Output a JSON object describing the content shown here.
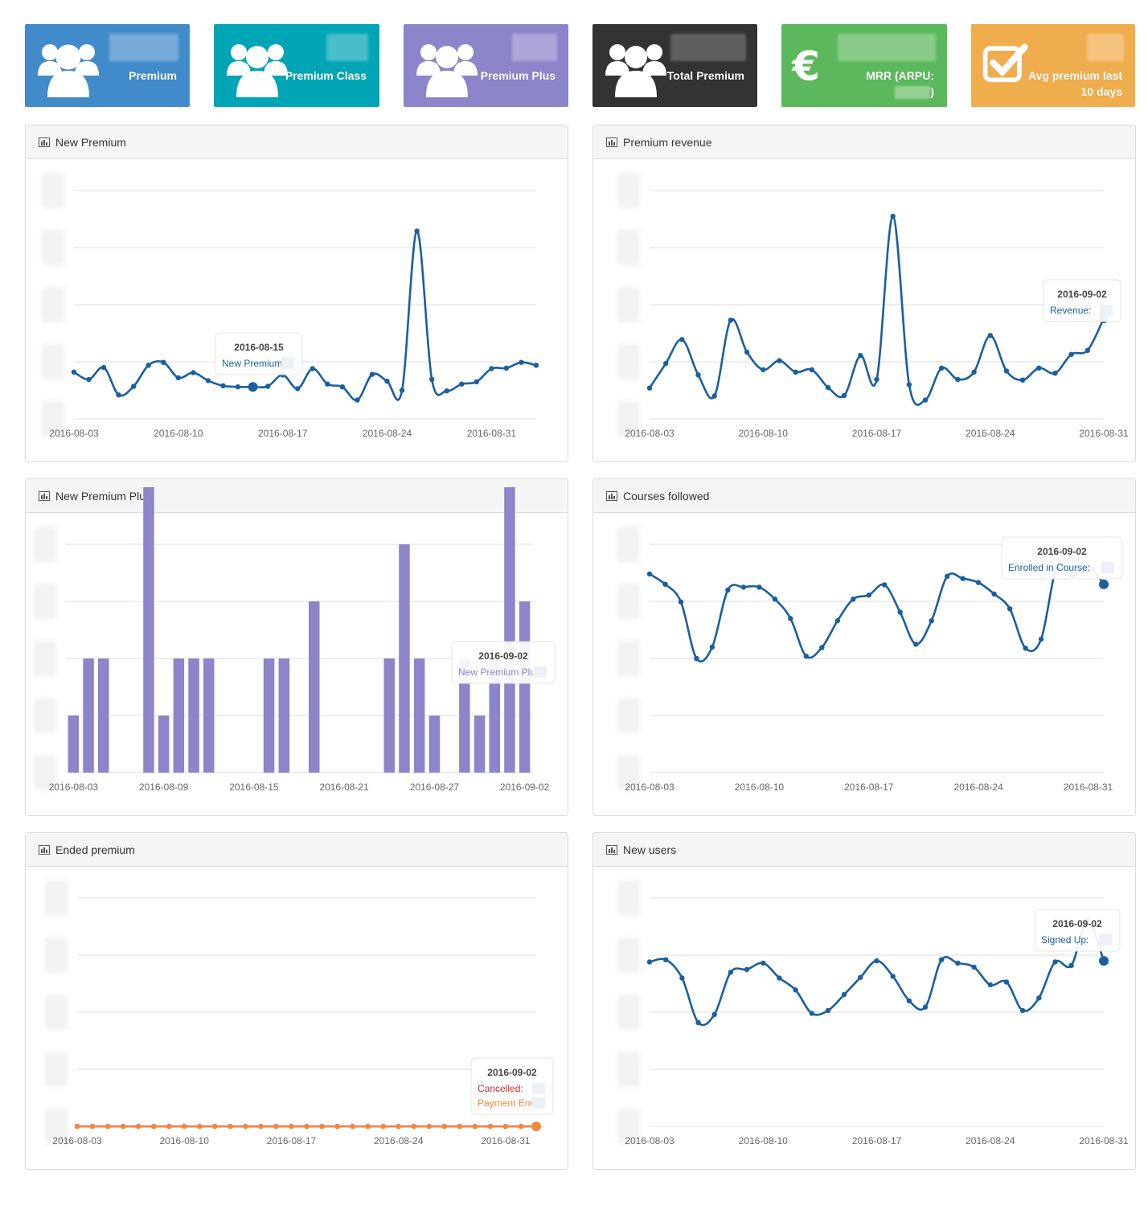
{
  "stats": [
    {
      "label": "Premium",
      "label2": "",
      "color": "#428bca",
      "icon": "users-icon"
    },
    {
      "label": "Premium Class",
      "label2": "",
      "color": "#00a5b5",
      "icon": "users-icon"
    },
    {
      "label": "Premium Plus",
      "label2": "",
      "color": "#8c85c9",
      "icon": "users-icon"
    },
    {
      "label": "Total Premium",
      "label2": "",
      "color": "#333333",
      "icon": "users-icon"
    },
    {
      "label": "MRR (ARPU:",
      "label2": ")",
      "color": "#5cb85c",
      "icon": "euro-icon"
    },
    {
      "label": "Avg premium last",
      "label2": "10 days",
      "color": "#f0ad4e",
      "icon": "check-square-icon"
    }
  ],
  "panels": {
    "p0": {
      "title": "New Premium"
    },
    "p1": {
      "title": "Premium revenue"
    },
    "p2": {
      "title": "New Premium Plus"
    },
    "p3": {
      "title": "Courses followed"
    },
    "p4": {
      "title": "Ended premium"
    },
    "p5": {
      "title": "New users"
    }
  },
  "chart_data": [
    {
      "id": "p0",
      "type": "line",
      "x_ticks": [
        "2016-08-03",
        "2016-08-10",
        "2016-08-17",
        "2016-08-24",
        "2016-08-31"
      ],
      "series": [
        {
          "name": "New Premium",
          "color": "#1a5f9e",
          "values": [
            0.82,
            0.69,
            0.9,
            0.42,
            0.57,
            0.94,
            0.99,
            0.72,
            0.81,
            0.67,
            0.58,
            0.56,
            0.56,
            0.57,
            0.77,
            0.53,
            0.88,
            0.61,
            0.56,
            0.33,
            0.78,
            0.66,
            0.5,
            3.29,
            0.69,
            0.49,
            0.61,
            0.65,
            0.88,
            0.89,
            0.99,
            0.94
          ]
        }
      ],
      "tooltip": {
        "date": "2016-08-15",
        "lines": [
          {
            "label": "New Premium:",
            "color": "#1a5f9e"
          }
        ],
        "highlight_index": 12
      }
    },
    {
      "id": "p1",
      "type": "line",
      "x_ticks": [
        "2016-08-03",
        "2016-08-10",
        "2016-08-17",
        "2016-08-24",
        "2016-08-31"
      ],
      "series": [
        {
          "name": "Revenue",
          "color": "#1a5f9e",
          "values": [
            0.54,
            0.97,
            1.39,
            0.77,
            0.4,
            1.73,
            1.17,
            0.86,
            1.02,
            0.82,
            0.86,
            0.55,
            0.41,
            1.11,
            0.69,
            3.55,
            0.6,
            0.33,
            0.89,
            0.69,
            0.82,
            1.46,
            0.84,
            0.68,
            0.89,
            0.8,
            1.13,
            1.2,
            1.76
          ]
        }
      ],
      "tooltip": {
        "date": "2016-09-02",
        "lines": [
          {
            "label": "Revenue:",
            "color": "#1a5f9e"
          }
        ],
        "highlight_index": 28
      }
    },
    {
      "id": "p2",
      "type": "bar",
      "x_ticks": [
        "2016-08-03",
        "2016-08-09",
        "2016-08-15",
        "2016-08-21",
        "2016-08-27",
        "2016-09-02"
      ],
      "series": [
        {
          "name": "New Premium Plus",
          "color": "#8c85c9",
          "values": [
            1,
            2,
            2,
            0,
            0,
            5,
            1,
            2,
            2,
            2,
            0,
            0,
            0,
            2,
            2,
            0,
            3,
            0,
            0,
            0,
            0,
            2,
            4,
            2,
            1,
            0,
            2,
            1,
            2,
            5,
            3
          ]
        }
      ],
      "tooltip": {
        "date": "2016-09-02",
        "lines": [
          {
            "label": "New Premium Plus:",
            "color": "#8c85c9"
          }
        ],
        "highlight_index": 30
      }
    },
    {
      "id": "p3",
      "type": "line",
      "x_ticks": [
        "2016-08-03",
        "2016-08-10",
        "2016-08-17",
        "2016-08-24",
        "2016-08-31"
      ],
      "series": [
        {
          "name": "Enrolled in Course",
          "color": "#1a5f9e",
          "values": [
            3.48,
            3.3,
            2.99,
            2.0,
            2.2,
            3.2,
            3.25,
            3.25,
            3.04,
            2.7,
            2.04,
            2.19,
            2.66,
            3.04,
            3.11,
            3.29,
            2.81,
            2.25,
            2.66,
            3.44,
            3.4,
            3.33,
            3.13,
            2.87,
            2.18,
            2.34,
            3.6,
            3.45,
            3.62,
            3.3
          ]
        }
      ],
      "tooltip": {
        "date": "2016-09-02",
        "lines": [
          {
            "label": "Enrolled in Course:",
            "color": "#1a5f9e"
          }
        ],
        "highlight_index": 29
      }
    },
    {
      "id": "p4",
      "type": "line",
      "x_ticks": [
        "2016-08-03",
        "2016-08-10",
        "2016-08-17",
        "2016-08-24",
        "2016-08-31"
      ],
      "series": [
        {
          "name": "Cancelled",
          "color": "#d9534f",
          "values": [
            0,
            0,
            0,
            0,
            0,
            0,
            0,
            0,
            0,
            0,
            0,
            0,
            0,
            0,
            0,
            0,
            0,
            0,
            0,
            0,
            0,
            0,
            0,
            0,
            0,
            0,
            0,
            0,
            0,
            0,
            0
          ]
        },
        {
          "name": "Payment Error",
          "color": "#f0883e",
          "values": [
            0,
            0,
            0,
            0,
            0,
            0,
            0,
            0,
            0,
            0,
            0,
            0,
            0,
            0,
            0,
            0,
            0,
            0,
            0,
            0,
            0,
            0,
            0,
            0,
            0,
            0,
            0,
            0,
            0,
            0,
            0
          ]
        }
      ],
      "tooltip": {
        "date": "2016-09-02",
        "lines": [
          {
            "label": "Cancelled:",
            "color": "#c9302c"
          },
          {
            "label": "Payment Error:",
            "color": "#f0883e"
          }
        ],
        "highlight_index": 30
      }
    },
    {
      "id": "p5",
      "type": "line",
      "x_ticks": [
        "2016-08-03",
        "2016-08-10",
        "2016-08-17",
        "2016-08-24",
        "2016-08-31"
      ],
      "series": [
        {
          "name": "Signed Up",
          "color": "#1a5f9e",
          "values": [
            2.88,
            2.92,
            2.6,
            1.82,
            1.96,
            2.7,
            2.75,
            2.86,
            2.6,
            2.39,
            1.98,
            2.03,
            2.31,
            2.61,
            2.9,
            2.63,
            2.2,
            2.09,
            2.92,
            2.86,
            2.79,
            2.48,
            2.53,
            2.03,
            2.25,
            2.88,
            2.82,
            3.6,
            2.9
          ]
        }
      ],
      "tooltip": {
        "date": "2016-09-02",
        "lines": [
          {
            "label": "Signed Up:",
            "color": "#1a5f9e"
          }
        ],
        "highlight_index": 28
      }
    }
  ]
}
